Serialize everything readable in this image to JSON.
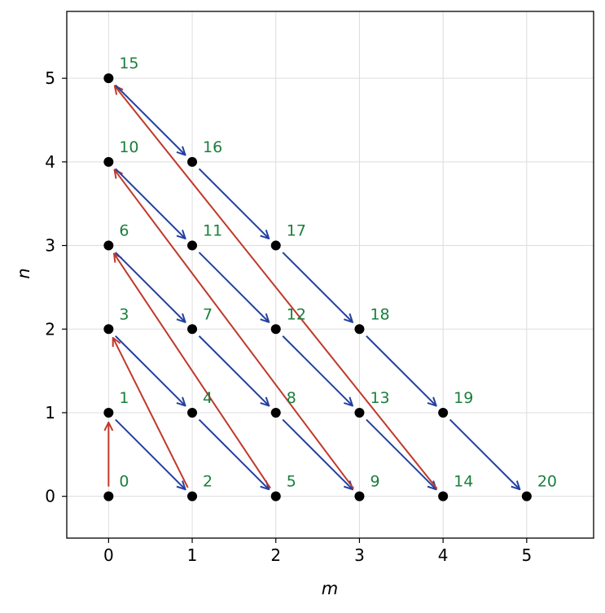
{
  "chart_data": {
    "type": "scatter",
    "xlabel": "m",
    "ylabel": "n",
    "xlim": [
      -0.5,
      5.8
    ],
    "ylim": [
      -0.5,
      5.8
    ],
    "xticks": [
      "0",
      "1",
      "2",
      "3",
      "4",
      "5"
    ],
    "yticks": [
      "0",
      "1",
      "2",
      "3",
      "4",
      "5"
    ],
    "grid": true,
    "colors": {
      "point": "#000000",
      "label": "#1a7f3c",
      "step_arrow": "#2340a0",
      "wrap_arrow": "#c0392b"
    },
    "points": [
      {
        "m": 0,
        "n": 0,
        "label": "0"
      },
      {
        "m": 0,
        "n": 1,
        "label": "1"
      },
      {
        "m": 1,
        "n": 0,
        "label": "2"
      },
      {
        "m": 0,
        "n": 2,
        "label": "3"
      },
      {
        "m": 1,
        "n": 1,
        "label": "4"
      },
      {
        "m": 2,
        "n": 0,
        "label": "5"
      },
      {
        "m": 0,
        "n": 3,
        "label": "6"
      },
      {
        "m": 1,
        "n": 2,
        "label": "7"
      },
      {
        "m": 2,
        "n": 1,
        "label": "8"
      },
      {
        "m": 3,
        "n": 0,
        "label": "9"
      },
      {
        "m": 0,
        "n": 4,
        "label": "10"
      },
      {
        "m": 1,
        "n": 3,
        "label": "11"
      },
      {
        "m": 2,
        "n": 2,
        "label": "12"
      },
      {
        "m": 3,
        "n": 1,
        "label": "13"
      },
      {
        "m": 4,
        "n": 0,
        "label": "14"
      },
      {
        "m": 0,
        "n": 5,
        "label": "15"
      },
      {
        "m": 1,
        "n": 4,
        "label": "16"
      },
      {
        "m": 2,
        "n": 3,
        "label": "17"
      },
      {
        "m": 3,
        "n": 2,
        "label": "18"
      },
      {
        "m": 4,
        "n": 1,
        "label": "19"
      },
      {
        "m": 5,
        "n": 0,
        "label": "20"
      }
    ]
  }
}
